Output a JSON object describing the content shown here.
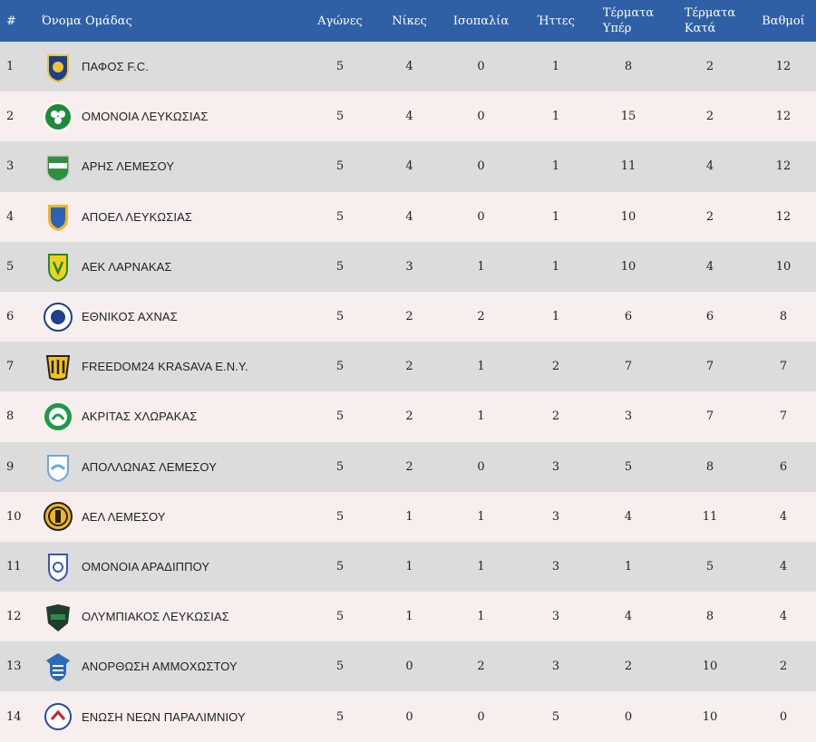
{
  "header": {
    "pos": "#",
    "team": "Όνομα Ομάδας",
    "played": "Αγώνες",
    "wins": "Νίκες",
    "draws": "Ισοπαλία",
    "losses": "Ήττες",
    "gf_line1": "Τέρματα",
    "gf_line2": "Υπέρ",
    "ga_line1": "Τέρματα",
    "ga_line2": "Κατά",
    "points": "Βαθμοί"
  },
  "rows": [
    {
      "pos": "1",
      "team": "ΠΑΦΟΣ F.C.",
      "played": "5",
      "wins": "4",
      "draws": "0",
      "losses": "1",
      "gf": "8",
      "ga": "2",
      "pts": "12",
      "logo": "pafos-crest-icon",
      "c1": "#1b3f8f",
      "c2": "#f2c230"
    },
    {
      "pos": "2",
      "team": "ΟΜΟΝΟΙΑ ΛΕΥΚΩΣΙΑΣ",
      "played": "5",
      "wins": "4",
      "draws": "0",
      "losses": "1",
      "gf": "15",
      "ga": "2",
      "pts": "12",
      "logo": "omonoia-shamrock-icon",
      "c1": "#1e8a3a",
      "c2": "#ffffff"
    },
    {
      "pos": "3",
      "team": "ΑΡΗΣ ΛΕΜΕΣΟΥ",
      "played": "5",
      "wins": "4",
      "draws": "0",
      "losses": "1",
      "gf": "11",
      "ga": "4",
      "pts": "12",
      "logo": "aris-crest-icon",
      "c1": "#2f8f3f",
      "c2": "#ffffff"
    },
    {
      "pos": "4",
      "team": "ΑΠΟΕΛ ΛΕΥΚΩΣΙΑΣ",
      "played": "5",
      "wins": "4",
      "draws": "0",
      "losses": "1",
      "gf": "10",
      "ga": "2",
      "pts": "12",
      "logo": "apoel-crest-icon",
      "c1": "#2a62b8",
      "c2": "#f2b51c"
    },
    {
      "pos": "5",
      "team": "ΑΕΚ ΛΑΡΝΑΚΑΣ",
      "played": "5",
      "wins": "3",
      "draws": "1",
      "losses": "1",
      "gf": "10",
      "ga": "4",
      "pts": "10",
      "logo": "aek-crest-icon",
      "c1": "#f4d21a",
      "c2": "#1c8a3a"
    },
    {
      "pos": "6",
      "team": "ΕΘΝΙΚΟΣ ΑΧΝΑΣ",
      "played": "5",
      "wins": "2",
      "draws": "2",
      "losses": "1",
      "gf": "6",
      "ga": "6",
      "pts": "8",
      "logo": "ethnikos-crest-icon",
      "c1": "#ffffff",
      "c2": "#1d3f8c"
    },
    {
      "pos": "7",
      "team": "FREEDOM24 KRASAVA E.N.Y.",
      "played": "5",
      "wins": "2",
      "draws": "1",
      "losses": "2",
      "gf": "7",
      "ga": "7",
      "pts": "7",
      "logo": "krasava-crest-icon",
      "c1": "#f2c21a",
      "c2": "#222222"
    },
    {
      "pos": "8",
      "team": "ΑΚΡΙΤΑΣ ΧΛΩΡΑΚΑΣ",
      "played": "5",
      "wins": "2",
      "draws": "1",
      "losses": "2",
      "gf": "3",
      "ga": "7",
      "pts": "7",
      "logo": "akritas-crest-icon",
      "c1": "#1e9a48",
      "c2": "#ffffff"
    },
    {
      "pos": "9",
      "team": "ΑΠΟΛΛΩΝΑΣ ΛΕΜΕΣΟΥ",
      "played": "5",
      "wins": "2",
      "draws": "0",
      "losses": "3",
      "gf": "5",
      "ga": "8",
      "pts": "6",
      "logo": "apollon-crest-icon",
      "c1": "#6aa9e0",
      "c2": "#ffffff"
    },
    {
      "pos": "10",
      "team": "ΑΕΛ ΛΕΜΕΣΟΥ",
      "played": "5",
      "wins": "1",
      "draws": "1",
      "losses": "3",
      "gf": "4",
      "ga": "11",
      "pts": "4",
      "logo": "ael-crest-icon",
      "c1": "#f2b51c",
      "c2": "#222222"
    },
    {
      "pos": "11",
      "team": "ΟΜΟΝΟΙΑ ΑΡΑΔΙΠΠΟΥ",
      "played": "5",
      "wins": "1",
      "draws": "1",
      "losses": "3",
      "gf": "1",
      "ga": "5",
      "pts": "4",
      "logo": "omonoia-aradippou-crest-icon",
      "c1": "#ffffff",
      "c2": "#3a56b8"
    },
    {
      "pos": "12",
      "team": "ΟΛΥΜΠΙΑΚΟΣ ΛΕΥΚΩΣΙΑΣ",
      "played": "5",
      "wins": "1",
      "draws": "1",
      "losses": "3",
      "gf": "4",
      "ga": "8",
      "pts": "4",
      "logo": "olympiakos-crest-icon",
      "c1": "#1f3d2a",
      "c2": "#2e8a4a"
    },
    {
      "pos": "13",
      "team": "ΑΝΟΡΘΩΣΗ ΑΜΜΟΧΩΣΤΟΥ",
      "played": "5",
      "wins": "0",
      "draws": "2",
      "losses": "3",
      "gf": "2",
      "ga": "10",
      "pts": "2",
      "logo": "anorthosis-crest-icon",
      "c1": "#2a6ab8",
      "c2": "#ffffff"
    },
    {
      "pos": "14",
      "team": "ΕΝΩΣΗ ΝΕΩΝ ΠΑΡΑΛΙΜΝΙΟΥ",
      "played": "5",
      "wins": "0",
      "draws": "0",
      "losses": "5",
      "gf": "0",
      "ga": "10",
      "pts": "0",
      "logo": "enp-crest-icon",
      "c1": "#c8202a",
      "c2": "#2a4a9a"
    }
  ]
}
